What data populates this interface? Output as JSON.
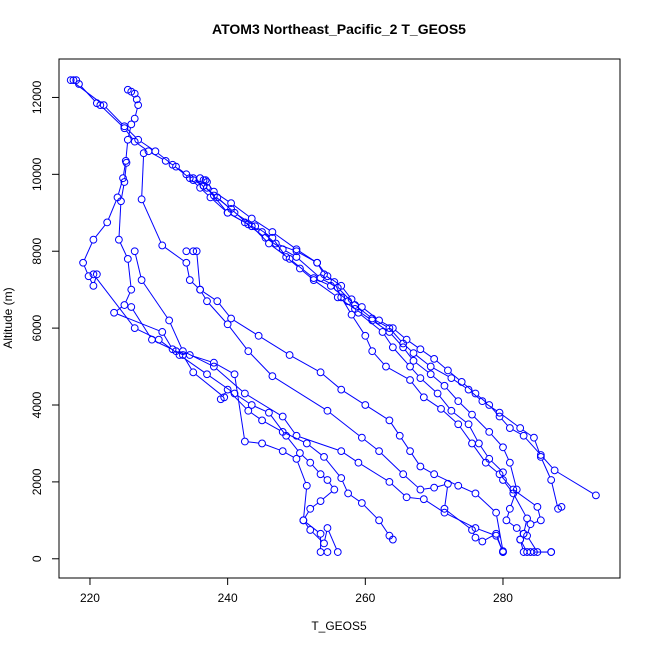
{
  "chart_data": {
    "type": "scatter",
    "title": "ATOM3 Northeast_Pacific_2 T_GEOS5",
    "xlabel": "T_GEOS5",
    "ylabel": "Altitude (m)",
    "xlim": [
      215.5,
      297
    ],
    "ylim": [
      -500,
      13000
    ],
    "xticks": [
      220,
      240,
      260,
      280
    ],
    "yticks": [
      0,
      2000,
      4000,
      6000,
      8000,
      10000,
      12000
    ],
    "grid": false,
    "legend": "none",
    "series_color": "#0000ff",
    "series": [
      {
        "points": [
          [
            217.6,
            12450
          ],
          [
            218.0,
            12450
          ],
          [
            218.4,
            12350
          ],
          [
            221.0,
            11850
          ],
          [
            221.5,
            11800
          ],
          [
            225.0,
            11200
          ],
          [
            226.5,
            10850
          ],
          [
            228.5,
            10600
          ],
          [
            231.0,
            10350
          ],
          [
            232.5,
            10200
          ],
          [
            234.0,
            10000
          ],
          [
            235.0,
            9850
          ],
          [
            236.5,
            9700
          ],
          [
            238.0,
            9450
          ],
          [
            240.5,
            9100
          ],
          [
            243.0,
            8700
          ],
          [
            245.0,
            8500
          ],
          [
            247.0,
            8200
          ],
          [
            250.0,
            8000
          ],
          [
            253.0,
            7700
          ],
          [
            254.5,
            7350
          ],
          [
            256.5,
            7100
          ],
          [
            258.0,
            6750
          ],
          [
            259.5,
            6550
          ],
          [
            262.0,
            6200
          ],
          [
            264.0,
            6000
          ],
          [
            266.0,
            5700
          ],
          [
            268.0,
            5450
          ],
          [
            270.0,
            5200
          ],
          [
            272.0,
            4900
          ],
          [
            274.0,
            4600
          ],
          [
            276.0,
            4300
          ],
          [
            278.0,
            4000
          ],
          [
            279.5,
            3700
          ],
          [
            281.0,
            3400
          ],
          [
            283.0,
            3200
          ],
          [
            285.5,
            2700
          ],
          [
            287.5,
            2300
          ],
          [
            293.5,
            1650
          ]
        ]
      },
      {
        "points": [
          [
            217.2,
            12450
          ],
          [
            222.0,
            11800
          ],
          [
            225.0,
            11250
          ],
          [
            227.0,
            10900
          ],
          [
            229.5,
            10600
          ],
          [
            232.0,
            10250
          ],
          [
            234.5,
            9900
          ],
          [
            236.0,
            9650
          ],
          [
            237.5,
            9400
          ],
          [
            240.0,
            9000
          ],
          [
            242.5,
            8750
          ],
          [
            245.5,
            8350
          ],
          [
            248.0,
            8050
          ],
          [
            250.0,
            7850
          ],
          [
            253.5,
            7300
          ],
          [
            256.0,
            7050
          ],
          [
            258.5,
            6600
          ],
          [
            261.0,
            6250
          ],
          [
            263.5,
            6000
          ],
          [
            265.5,
            5600
          ],
          [
            267.0,
            5350
          ],
          [
            269.5,
            5000
          ],
          [
            272.5,
            4700
          ],
          [
            275.0,
            4400
          ],
          [
            277.0,
            4100
          ],
          [
            279.5,
            3800
          ],
          [
            282.5,
            3400
          ],
          [
            284.5,
            3150
          ],
          [
            285.5,
            2650
          ],
          [
            287.0,
            2050
          ],
          [
            288.0,
            1300
          ],
          [
            288.5,
            1350
          ]
        ]
      },
      {
        "points": [
          [
            225.5,
            12200
          ],
          [
            226.0,
            12150
          ],
          [
            226.5,
            12100
          ],
          [
            226.8,
            11950
          ],
          [
            227.0,
            11800
          ],
          [
            226.5,
            11450
          ],
          [
            226.0,
            11300
          ],
          [
            225.5,
            10900
          ],
          [
            225.2,
            10350
          ],
          [
            224.8,
            9900
          ],
          [
            224.0,
            9400
          ],
          [
            222.5,
            8750
          ],
          [
            220.5,
            8300
          ],
          [
            219.0,
            7700
          ],
          [
            219.8,
            7350
          ],
          [
            220.5,
            7100
          ],
          [
            221.0,
            7400
          ]
        ]
      },
      {
        "points": [
          [
            225.3,
            10300
          ],
          [
            225.0,
            9800
          ],
          [
            224.5,
            9300
          ],
          [
            224.2,
            8300
          ],
          [
            225.5,
            7800
          ],
          [
            226.0,
            7000
          ],
          [
            225.0,
            6600
          ],
          [
            223.5,
            6400
          ],
          [
            230.5,
            5900
          ],
          [
            232.0,
            5450
          ],
          [
            233.5,
            5300
          ],
          [
            235.0,
            4850
          ],
          [
            239.5,
            4200
          ],
          [
            239.0,
            4150
          ],
          [
            240.0,
            4400
          ],
          [
            243.0,
            3850
          ],
          [
            245.0,
            3600
          ],
          [
            248.0,
            3300
          ],
          [
            251.5,
            3000
          ],
          [
            254.0,
            2650
          ],
          [
            256.5,
            2100
          ],
          [
            257.5,
            1700
          ],
          [
            259.5,
            1450
          ],
          [
            262.0,
            1000
          ],
          [
            263.5,
            600
          ],
          [
            264.0,
            500
          ]
        ]
      },
      {
        "points": [
          [
            220.5,
            7400
          ],
          [
            226.5,
            6000
          ],
          [
            230.0,
            5700
          ],
          [
            233.0,
            5300
          ],
          [
            237.0,
            4800
          ],
          [
            241.0,
            4300
          ],
          [
            243.5,
            4000
          ],
          [
            246.0,
            3800
          ],
          [
            248.5,
            3200
          ],
          [
            250.5,
            2750
          ],
          [
            252.0,
            2500
          ],
          [
            253.5,
            2200
          ],
          [
            254.5,
            2050
          ],
          [
            255.5,
            1800
          ],
          [
            253.5,
            1500
          ],
          [
            252.0,
            1300
          ],
          [
            251.0,
            1000
          ],
          [
            253.5,
            650
          ],
          [
            253.5,
            175
          ],
          [
            254.5,
            175
          ]
        ]
      },
      {
        "points": [
          [
            226.0,
            6550
          ],
          [
            229.0,
            5700
          ],
          [
            232.5,
            5400
          ],
          [
            234.5,
            5300
          ],
          [
            238.0,
            5100
          ],
          [
            241.0,
            4800
          ],
          [
            242.5,
            3050
          ],
          [
            245.0,
            3000
          ],
          [
            248.0,
            2800
          ],
          [
            250.0,
            2600
          ],
          [
            251.5,
            1900
          ],
          [
            251.0,
            1000
          ],
          [
            252.0,
            750
          ],
          [
            254.0,
            400
          ],
          [
            254.5,
            800
          ],
          [
            256.0,
            175
          ]
        ]
      },
      {
        "points": [
          [
            227.8,
            10550
          ],
          [
            227.5,
            9350
          ],
          [
            230.5,
            8150
          ],
          [
            234.0,
            7700
          ],
          [
            234.5,
            7250
          ],
          [
            236.0,
            7000
          ],
          [
            237.0,
            6700
          ],
          [
            240.0,
            6100
          ],
          [
            243.0,
            5400
          ],
          [
            246.5,
            4750
          ],
          [
            254.5,
            3850
          ],
          [
            259.5,
            3150
          ],
          [
            262.0,
            2800
          ],
          [
            265.5,
            2200
          ],
          [
            268.0,
            1800
          ],
          [
            270.0,
            1850
          ],
          [
            272.0,
            1950
          ],
          [
            271.5,
            1300
          ],
          [
            275.5,
            750
          ],
          [
            276.0,
            550
          ],
          [
            277.0,
            450
          ],
          [
            279.0,
            650
          ],
          [
            280.0,
            175
          ]
        ]
      },
      {
        "points": [
          [
            226.5,
            8000
          ],
          [
            227.5,
            7250
          ],
          [
            231.5,
            6200
          ],
          [
            233.5,
            5400
          ],
          [
            238.0,
            5000
          ],
          [
            242.5,
            4300
          ],
          [
            248.0,
            3700
          ],
          [
            250.0,
            3200
          ],
          [
            256.5,
            2800
          ],
          [
            259.0,
            2500
          ],
          [
            263.5,
            2000
          ],
          [
            266.0,
            1600
          ],
          [
            268.5,
            1550
          ],
          [
            271.5,
            1200
          ],
          [
            276.0,
            800
          ],
          [
            279.0,
            600
          ],
          [
            280.0,
            175
          ]
        ]
      },
      {
        "points": [
          [
            234.0,
            8000
          ],
          [
            235.0,
            8000
          ],
          [
            235.5,
            8000
          ],
          [
            236.0,
            7000
          ],
          [
            238.5,
            6700
          ],
          [
            240.5,
            6250
          ],
          [
            244.5,
            5800
          ],
          [
            249.0,
            5300
          ],
          [
            253.5,
            4850
          ],
          [
            256.5,
            4400
          ],
          [
            260.0,
            4000
          ],
          [
            263.5,
            3600
          ],
          [
            265.0,
            3200
          ],
          [
            266.5,
            2800
          ],
          [
            268.0,
            2400
          ],
          [
            270.0,
            2200
          ],
          [
            273.5,
            1900
          ],
          [
            276.0,
            1700
          ],
          [
            279.0,
            1200
          ],
          [
            280.0,
            200
          ]
        ]
      },
      {
        "points": [
          [
            236.0,
            9900
          ],
          [
            236.8,
            9850
          ],
          [
            237.0,
            9650
          ],
          [
            240.0,
            9000
          ],
          [
            243.5,
            8650
          ],
          [
            246.0,
            8200
          ],
          [
            249.0,
            7800
          ],
          [
            252.5,
            7300
          ],
          [
            255.0,
            7100
          ],
          [
            257.5,
            6700
          ],
          [
            259.0,
            6400
          ],
          [
            262.5,
            5900
          ],
          [
            264.0,
            5500
          ],
          [
            266.5,
            5000
          ],
          [
            268.0,
            4700
          ],
          [
            270.5,
            4300
          ],
          [
            272.5,
            3850
          ],
          [
            275.0,
            3500
          ],
          [
            276.5,
            3000
          ],
          [
            278.0,
            2600
          ],
          [
            280.0,
            2250
          ],
          [
            280.0,
            2050
          ],
          [
            281.5,
            1700
          ],
          [
            283.5,
            1050
          ],
          [
            283.0,
            650
          ],
          [
            282.5,
            500
          ],
          [
            283.5,
            175
          ],
          [
            284.5,
            175
          ]
        ]
      },
      {
        "points": [
          [
            236.5,
            9850
          ],
          [
            237.0,
            9800
          ],
          [
            238.0,
            9550
          ],
          [
            240.5,
            9250
          ],
          [
            243.5,
            8850
          ],
          [
            246.5,
            8500
          ],
          [
            250.0,
            8050
          ],
          [
            253.0,
            7700
          ],
          [
            254.0,
            7400
          ],
          [
            255.5,
            7200
          ],
          [
            256.5,
            6800
          ],
          [
            258.0,
            6350
          ],
          [
            260.0,
            5800
          ],
          [
            261.0,
            5400
          ],
          [
            263.0,
            5000
          ],
          [
            266.5,
            4650
          ],
          [
            268.5,
            4200
          ],
          [
            271.0,
            3900
          ],
          [
            273.5,
            3500
          ],
          [
            275.5,
            3000
          ],
          [
            277.5,
            2500
          ],
          [
            279.5,
            2200
          ],
          [
            281.5,
            1800
          ],
          [
            285.0,
            1350
          ],
          [
            285.5,
            1000
          ],
          [
            284.0,
            900
          ],
          [
            283.5,
            600
          ],
          [
            285.0,
            175
          ],
          [
            287.0,
            175
          ]
        ]
      },
      {
        "points": [
          [
            235.0,
            9900
          ],
          [
            236.5,
            9700
          ],
          [
            238.5,
            9400
          ],
          [
            241.0,
            9000
          ],
          [
            244.0,
            8650
          ],
          [
            246.5,
            8350
          ],
          [
            248.5,
            7850
          ],
          [
            250.5,
            7550
          ],
          [
            252.5,
            7250
          ],
          [
            256.0,
            6800
          ],
          [
            258.5,
            6500
          ],
          [
            261.0,
            6200
          ],
          [
            263.5,
            5900
          ],
          [
            265.5,
            5500
          ],
          [
            267.0,
            5150
          ],
          [
            269.5,
            4800
          ],
          [
            271.5,
            4500
          ],
          [
            273.5,
            4100
          ],
          [
            275.5,
            3750
          ],
          [
            278.0,
            3300
          ],
          [
            280.0,
            2900
          ],
          [
            281.0,
            2500
          ],
          [
            282.0,
            1800
          ],
          [
            281.0,
            1300
          ],
          [
            280.5,
            1000
          ],
          [
            282.0,
            800
          ],
          [
            283.0,
            650
          ],
          [
            282.5,
            500
          ],
          [
            283.0,
            175
          ],
          [
            284.0,
            175
          ],
          [
            287.0,
            175
          ]
        ]
      }
    ]
  }
}
